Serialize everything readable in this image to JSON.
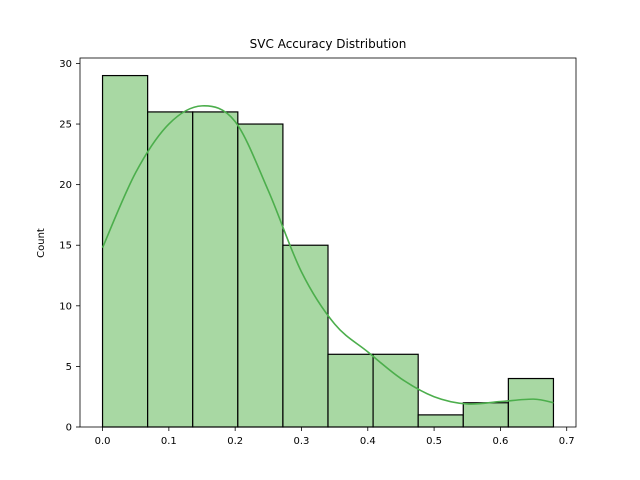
{
  "chart_data": {
    "type": "bar",
    "subtype": "histogram-with-kde",
    "title": "SVC Accuracy Distribution",
    "xlabel": "",
    "ylabel": "Count",
    "bin_edges": [
      0.0,
      0.068,
      0.136,
      0.204,
      0.272,
      0.34,
      0.408,
      0.476,
      0.544,
      0.612,
      0.68
    ],
    "values": [
      29,
      26,
      26,
      25,
      15,
      6,
      6,
      1,
      2,
      4
    ],
    "xlim": [
      -0.034,
      0.714
    ],
    "ylim": [
      0,
      30.45
    ],
    "xticks": [
      0.0,
      0.1,
      0.2,
      0.3,
      0.4,
      0.5,
      0.6,
      0.7
    ],
    "xtick_labels": [
      "0.0",
      "0.1",
      "0.2",
      "0.3",
      "0.4",
      "0.5",
      "0.6",
      "0.7"
    ],
    "yticks": [
      0,
      5,
      10,
      15,
      20,
      25,
      30
    ],
    "ytick_labels": [
      "0",
      "5",
      "10",
      "15",
      "20",
      "25",
      "30"
    ],
    "kde": {
      "x": [
        0.0,
        0.05,
        0.1,
        0.15,
        0.2,
        0.25,
        0.3,
        0.35,
        0.4,
        0.45,
        0.5,
        0.55,
        0.6,
        0.65,
        0.68
      ],
      "y": [
        14.8,
        21.0,
        25.0,
        26.5,
        25.2,
        19.5,
        12.8,
        8.5,
        6.2,
        4.0,
        2.5,
        1.9,
        2.1,
        2.3,
        2.0
      ]
    },
    "grid": false,
    "legend": null,
    "colors": {
      "bar_fill": "#a8d8a3",
      "bar_edge": "#000000",
      "kde_line": "#4cae4c",
      "axes": "#000000"
    }
  }
}
